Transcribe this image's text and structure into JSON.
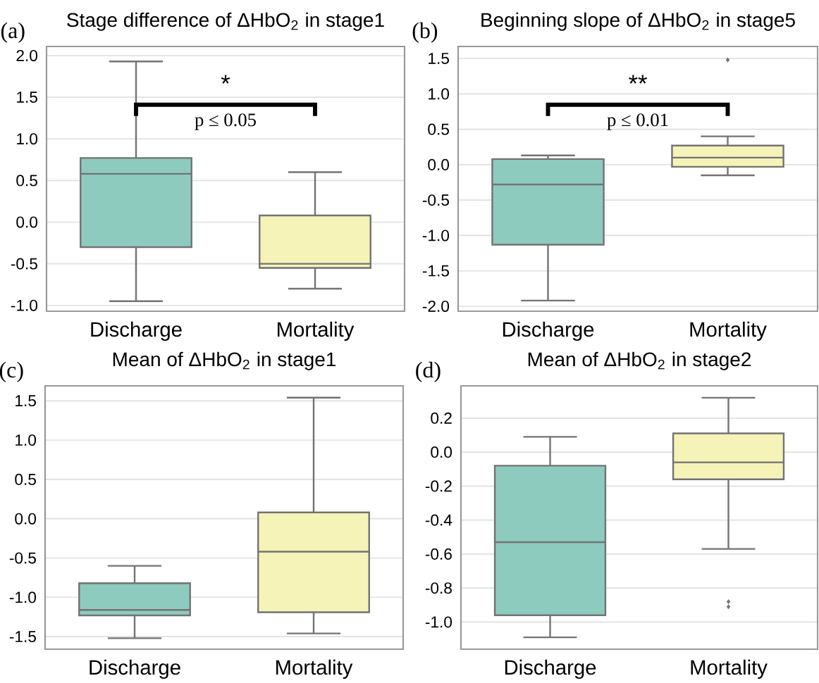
{
  "chart_data": [
    {
      "type": "box",
      "title": "Stage difference of ΔHbO$_{2}$ in stage1",
      "categories": [
        "Discharge",
        "Mortality"
      ],
      "colors": [
        "#8ecbbf",
        "#f5f3b8"
      ],
      "ylim": [
        -1.07,
        2.11
      ],
      "yticks": [
        {
          "value": -1,
          "label": "-1.0"
        },
        {
          "value": -0.5,
          "label": "-0.5"
        },
        {
          "value": 0,
          "label": "0.0"
        },
        {
          "value": 0.5,
          "label": "0.5"
        },
        {
          "value": 1,
          "label": "1.0"
        },
        {
          "value": 1.5,
          "label": "1.5"
        },
        {
          "value": 2,
          "label": "2.0"
        }
      ],
      "grid": "y",
      "boxes": [
        {
          "low": -0.95,
          "q1": -0.3,
          "median": 0.58,
          "q3": 0.77,
          "high": 1.93
        },
        {
          "low": -0.8,
          "q1": -0.55,
          "median": -0.5,
          "q3": 0.08,
          "high": 0.6
        }
      ],
      "annotations": [
        "(a)",
        "*",
        "p ≤ 0.05"
      ]
    },
    {
      "type": "box",
      "title": "Beginning slope of ΔHbO$_{2}$ in stage5",
      "categories": [
        "Discharge",
        "Mortality"
      ],
      "colors": [
        "#8ecbbf",
        "#f5f3b8"
      ],
      "ylim": [
        -2.07,
        1.67
      ],
      "yticks": [
        {
          "value": -2,
          "label": "-2.0"
        },
        {
          "value": -1.5,
          "label": "-1.5"
        },
        {
          "value": -1,
          "label": "-1.0"
        },
        {
          "value": -0.5,
          "label": "-0.5"
        },
        {
          "value": 0,
          "label": "0.0"
        },
        {
          "value": 0.5,
          "label": "0.5"
        },
        {
          "value": 1,
          "label": "1.0"
        },
        {
          "value": 1.5,
          "label": "1.5"
        }
      ],
      "grid": "y",
      "boxes": [
        {
          "low": -1.92,
          "q1": -1.13,
          "median": -0.28,
          "q3": 0.08,
          "high": 0.13
        },
        {
          "low": -0.15,
          "q1": -0.03,
          "median": 0.1,
          "q3": 0.27,
          "high": 0.4,
          "outliers": [
            1.48
          ]
        }
      ],
      "annotations": [
        "(b)",
        "**",
        "p ≤ 0.01"
      ]
    },
    {
      "type": "box",
      "title": "Mean of ΔHbO$_{2}$ in stage1",
      "categories": [
        "Discharge",
        "Mortality"
      ],
      "colors": [
        "#8ecbbf",
        "#f5f3b8"
      ],
      "ylim": [
        -1.66,
        1.69
      ],
      "yticks": [
        {
          "value": -1.5,
          "label": "-1.5"
        },
        {
          "value": -1,
          "label": "-1.0"
        },
        {
          "value": -0.5,
          "label": "-0.5"
        },
        {
          "value": 0,
          "label": "0.0"
        },
        {
          "value": 0.5,
          "label": "0.5"
        },
        {
          "value": 1,
          "label": "1.0"
        },
        {
          "value": 1.5,
          "label": "1.5"
        }
      ],
      "grid": "y",
      "boxes": [
        {
          "low": -1.52,
          "q1": -1.23,
          "median": -1.16,
          "q3": -0.82,
          "high": -0.6
        },
        {
          "low": -1.46,
          "q1": -1.19,
          "median": -0.42,
          "q3": 0.08,
          "high": 1.54
        }
      ],
      "annotations": [
        "(c)"
      ]
    },
    {
      "type": "box",
      "title": "Mean of ΔHbO$_{2}$ in stage2",
      "categories": [
        "Discharge",
        "Mortality"
      ],
      "colors": [
        "#8ecbbf",
        "#f5f3b8"
      ],
      "ylim": [
        -1.16,
        0.39
      ],
      "yticks": [
        {
          "value": -1,
          "label": "-1.0"
        },
        {
          "value": -0.8,
          "label": "-0.8"
        },
        {
          "value": -0.6,
          "label": "-0.6"
        },
        {
          "value": -0.4,
          "label": "-0.4"
        },
        {
          "value": -0.2,
          "label": "-0.2"
        },
        {
          "value": 0,
          "label": "0.0"
        },
        {
          "value": 0.2,
          "label": "0.2"
        }
      ],
      "grid": "y",
      "boxes": [
        {
          "low": -1.09,
          "q1": -0.96,
          "median": -0.53,
          "q3": -0.08,
          "high": 0.09
        },
        {
          "low": -0.57,
          "q1": -0.16,
          "median": -0.06,
          "q3": 0.11,
          "high": 0.32,
          "outliers": [
            -0.88,
            -0.91
          ]
        }
      ],
      "annotations": [
        "(d)"
      ]
    }
  ]
}
